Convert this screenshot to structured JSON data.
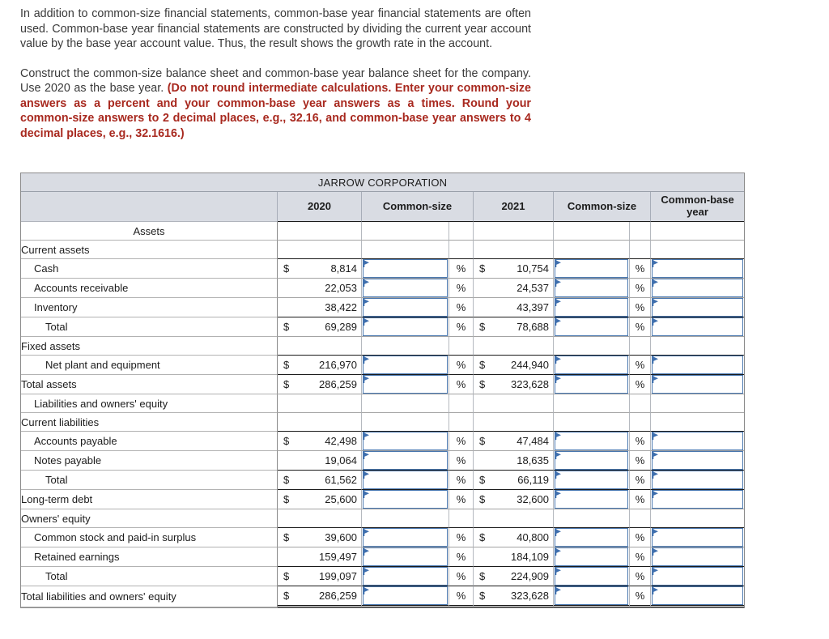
{
  "intro": {
    "text": "In addition to common-size financial statements, common-base year financial statements are often used. Common-base year financial statements are constructed by dividing the current year account value by the base year account value. Thus, the result shows the growth rate in the account."
  },
  "instructions": {
    "lead": "Construct the common-size balance sheet and common-base year balance sheet for the company. Use 2020 as the base year. ",
    "emphasis": "(Do not round intermediate calculations. Enter your common-size answers as a percent and your common-base year answers as a times. Round your common-size answers to 2 decimal places, e.g., 32.16, and common-base year answers to 4 decimal places, e.g., 32.1616.)"
  },
  "colors": {
    "accent_red": "#a8291f",
    "header_bg": "#d9dce3",
    "input_border": "#4a78b0",
    "flag_blue": "#3f6fae"
  },
  "table": {
    "title": "JARROW CORPORATION",
    "percent_symbol": "%",
    "headers": {
      "y2020": "2020",
      "common_size_2020": "Common-size",
      "y2021": "2021",
      "common_size_2021": "Common-size",
      "common_base": "Common-base year"
    },
    "rows": [
      {
        "label": "Assets",
        "indent": "center"
      },
      {
        "label": "Current assets",
        "indent": 0,
        "rule": "dark"
      },
      {
        "label": "Cash",
        "indent": 1,
        "d2020": "$",
        "v2020": "8,814",
        "d2021": "$",
        "v2021": "10,754",
        "input": true
      },
      {
        "label": "Accounts receivable",
        "indent": 1,
        "v2020": "22,053",
        "v2021": "24,537",
        "input": true
      },
      {
        "label": "Inventory",
        "indent": 1,
        "v2020": "38,422",
        "v2021": "43,397",
        "input": true,
        "rule": "dark"
      },
      {
        "label": "Total",
        "indent": 2,
        "d2020": "$",
        "v2020": "69,289",
        "d2021": "$",
        "v2021": "78,688",
        "input": true
      },
      {
        "label": "Fixed assets",
        "indent": 0,
        "rule": "dark"
      },
      {
        "label": "Net plant and equipment",
        "indent": 2,
        "d2020": "$",
        "v2020": "216,970",
        "d2021": "$",
        "v2021": "244,940",
        "input": true,
        "rule": "dark"
      },
      {
        "label": "Total assets",
        "indent": 0,
        "d2020": "$",
        "v2020": "286,259",
        "d2021": "$",
        "v2021": "323,628",
        "input": true
      },
      {
        "label": "Liabilities and owners' equity",
        "indent": 1
      },
      {
        "label": "Current liabilities",
        "indent": 0,
        "rule": "dark"
      },
      {
        "label": "Accounts payable",
        "indent": 1,
        "d2020": "$",
        "v2020": "42,498",
        "d2021": "$",
        "v2021": "47,484",
        "input": true
      },
      {
        "label": "Notes payable",
        "indent": 1,
        "v2020": "19,064",
        "v2021": "18,635",
        "input": true,
        "rule": "dark"
      },
      {
        "label": "Total",
        "indent": 2,
        "d2020": "$",
        "v2020": "61,562",
        "d2021": "$",
        "v2021": "66,119",
        "input": true,
        "rule": "dark"
      },
      {
        "label": "Long-term debt",
        "indent": 0,
        "d2020": "$",
        "v2020": "25,600",
        "d2021": "$",
        "v2021": "32,600",
        "input": true
      },
      {
        "label": "Owners' equity",
        "indent": 0,
        "rule": "dark"
      },
      {
        "label": "Common stock and paid-in surplus",
        "indent": 1,
        "d2020": "$",
        "v2020": "39,600",
        "d2021": "$",
        "v2021": "40,800",
        "input": true
      },
      {
        "label": "Retained earnings",
        "indent": 1,
        "v2020": "159,497",
        "v2021": "184,109",
        "input": true,
        "rule": "dark"
      },
      {
        "label": "Total",
        "indent": 2,
        "d2020": "$",
        "v2020": "199,097",
        "d2021": "$",
        "v2021": "224,909",
        "input": true,
        "rule": "dark"
      },
      {
        "label": "Total liabilities and owners' equity",
        "indent": 0,
        "d2020": "$",
        "v2020": "286,259",
        "d2021": "$",
        "v2021": "323,628",
        "input": true,
        "rule": "double"
      }
    ]
  }
}
